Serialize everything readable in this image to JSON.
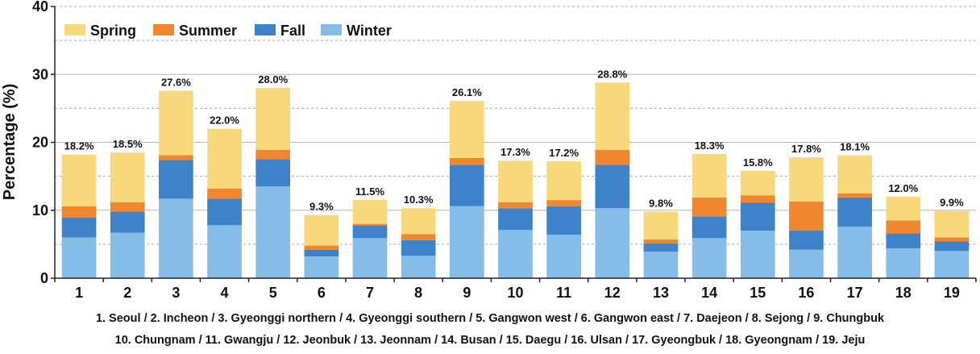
{
  "chart_data": {
    "type": "bar",
    "stacked": true,
    "ylabel": "Percentage  (%)",
    "ylim": [
      0,
      40
    ],
    "yticks": [
      0,
      10,
      20,
      30,
      40
    ],
    "grid": true,
    "legend_position": "top-left",
    "categories": [
      "1",
      "2",
      "3",
      "4",
      "5",
      "6",
      "7",
      "8",
      "9",
      "10",
      "11",
      "12",
      "13",
      "14",
      "15",
      "16",
      "17",
      "18",
      "19"
    ],
    "series": [
      {
        "name": "Winter",
        "color": "#85bde8",
        "values": [
          6.0,
          6.7,
          11.7,
          7.8,
          13.5,
          3.2,
          5.9,
          3.3,
          10.6,
          7.1,
          6.4,
          10.3,
          3.9,
          5.9,
          7.0,
          4.2,
          7.6,
          4.4,
          4.0
        ]
      },
      {
        "name": "Fall",
        "color": "#3e82c9",
        "values": [
          2.9,
          3.1,
          5.7,
          3.9,
          4.0,
          1.0,
          1.9,
          2.3,
          6.1,
          3.2,
          4.2,
          6.4,
          1.2,
          3.2,
          4.1,
          2.8,
          4.3,
          2.2,
          1.4
        ]
      },
      {
        "name": "Summer",
        "color": "#f0872e",
        "values": [
          1.7,
          1.4,
          0.7,
          1.5,
          1.4,
          0.6,
          0.2,
          0.9,
          1.0,
          0.9,
          0.9,
          2.2,
          0.6,
          2.8,
          1.1,
          4.3,
          0.6,
          1.9,
          0.6
        ]
      },
      {
        "name": "Spring",
        "color": "#f7d87a",
        "values": [
          7.6,
          7.3,
          9.5,
          8.8,
          9.1,
          4.5,
          3.5,
          3.8,
          8.4,
          6.1,
          5.7,
          9.9,
          4.1,
          6.4,
          3.6,
          6.5,
          5.6,
          3.5,
          3.9
        ]
      }
    ],
    "legend_order": [
      "Spring",
      "Summer",
      "Fall",
      "Winter"
    ],
    "totals": [
      "18.2%",
      "18.5%",
      "27.6%",
      "22.0%",
      "28.0%",
      "9.3%",
      "11.5%",
      "10.3%",
      "26.1%",
      "17.3%",
      "17.2%",
      "28.8%",
      "9.8%",
      "18.3%",
      "15.8%",
      "17.8%",
      "18.1%",
      "12.0%",
      "9.9%"
    ],
    "total_values": [
      18.2,
      18.5,
      27.6,
      22.0,
      28.0,
      9.3,
      11.5,
      10.3,
      26.1,
      17.3,
      17.2,
      28.8,
      9.8,
      18.3,
      15.8,
      17.8,
      18.1,
      12.0,
      9.9
    ],
    "caption_line1": "1. Seoul / 2. Incheon / 3. Gyeonggi northern / 4. Gyeonggi southern / 5. Gangwon west / 6. Gangwon east / 7. Daejeon / 8. Sejong / 9. Chungbuk",
    "caption_line2": "10. Chungnam / 11. Gwangju / 12. Jeonbuk / 13. Jeonnam / 14. Busan / 15. Daegu / 16. Ulsan / 17. Gyeongbuk / 18. Gyeongnam / 19. Jeju"
  }
}
